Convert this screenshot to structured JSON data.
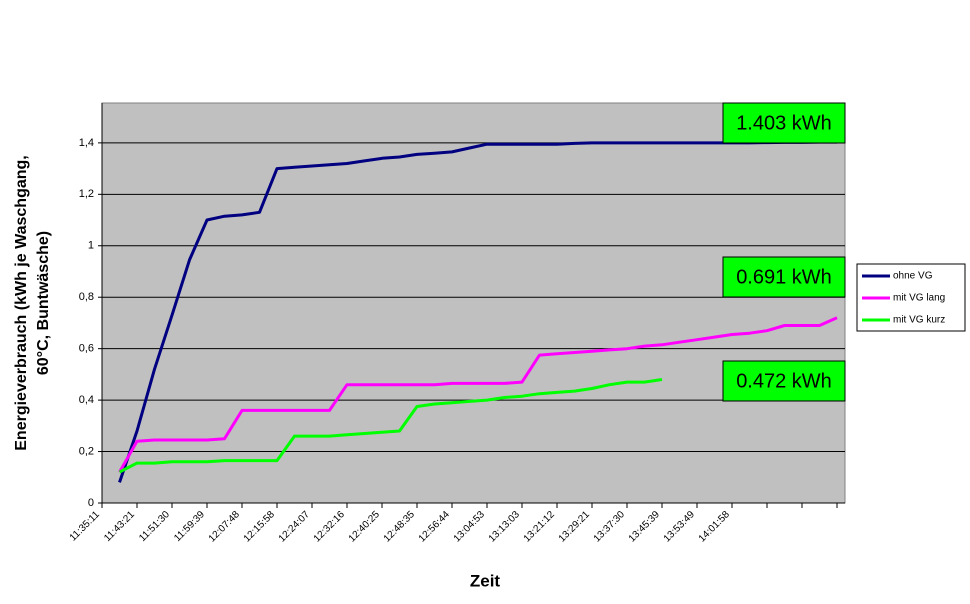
{
  "chart_data": {
    "type": "line",
    "ylabel": [
      "Energieverbrauch (kWh je Waschgang,",
      "60°C, Buntwäsche)"
    ],
    "xlabel": "Zeit",
    "categories": [
      "11:35:11",
      null,
      "11:43:21",
      null,
      "11:51:30",
      null,
      "11:59:39",
      null,
      "12:07:48",
      null,
      "12:15:58",
      null,
      "12:24:07",
      null,
      "12:32:16",
      null,
      "12:40:25",
      null,
      "12:48:35",
      null,
      "12:56:44",
      null,
      "13:04:53",
      null,
      "13:13:03",
      null,
      "13:21:12",
      null,
      "13:29:21",
      null,
      "13:37:30",
      null,
      "13:45:39",
      null,
      "13:53:49",
      null,
      "14:01:58",
      null,
      null,
      null,
      null,
      null,
      null
    ],
    "series": [
      {
        "name": "ohne VG",
        "color": "#000080",
        "values": [
          null,
          0.08,
          0.28,
          0.52,
          0.73,
          0.945,
          1.1,
          1.115,
          1.12,
          1.13,
          1.3,
          1.305,
          1.31,
          1.315,
          1.32,
          1.33,
          1.34,
          1.345,
          1.355,
          1.36,
          1.365,
          1.38,
          1.395,
          1.395,
          1.395,
          1.395,
          1.395,
          1.398,
          1.4,
          1.4,
          1.4,
          1.4,
          1.4,
          1.4,
          1.4,
          1.4,
          1.4,
          1.4,
          1.401,
          1.402,
          1.402,
          1.403,
          1.403
        ]
      },
      {
        "name": "mit VG lang",
        "color": "#ff00ff",
        "values": [
          null,
          0.12,
          0.24,
          0.245,
          0.245,
          0.245,
          0.245,
          0.25,
          0.36,
          0.36,
          0.36,
          0.36,
          0.36,
          0.36,
          0.46,
          0.46,
          0.46,
          0.46,
          0.46,
          0.46,
          0.465,
          0.465,
          0.465,
          0.465,
          0.47,
          0.575,
          0.58,
          0.585,
          0.59,
          0.595,
          0.6,
          0.61,
          0.615,
          0.625,
          0.635,
          0.645,
          0.655,
          0.66,
          0.67,
          0.69,
          0.69,
          0.69,
          0.72
        ]
      },
      {
        "name": "mit VG kurz",
        "color": "#00ff00",
        "values": [
          null,
          0.12,
          0.155,
          0.155,
          0.16,
          0.16,
          0.16,
          0.165,
          0.165,
          0.165,
          0.165,
          0.26,
          0.26,
          0.26,
          0.265,
          0.27,
          0.275,
          0.28,
          0.375,
          0.385,
          0.39,
          0.395,
          0.4,
          0.41,
          0.415,
          0.425,
          0.43,
          0.435,
          0.445,
          0.46,
          0.47,
          0.47,
          0.48,
          null,
          null,
          null,
          null,
          null,
          null,
          null,
          null,
          null,
          null
        ]
      }
    ],
    "ticks_every": 2,
    "ylim": [
      0,
      1.555
    ],
    "yticks": [
      0,
      {
        "value": 0.2,
        "label": "0,2"
      },
      {
        "value": 0.4,
        "label": "0,4"
      },
      {
        "value": 0.6,
        "label": "0,6"
      },
      {
        "value": 0.8,
        "label": "0,8"
      },
      1,
      {
        "value": 1.2,
        "label": "1,2"
      },
      {
        "value": 1.4,
        "label": "1,4"
      }
    ],
    "grid": true,
    "legend": "right",
    "annotations": [
      "1.403 kWh",
      "0.691 kWh",
      "0.472 kWh"
    ]
  }
}
